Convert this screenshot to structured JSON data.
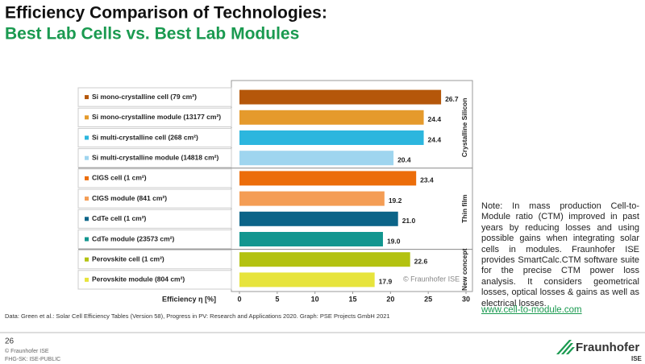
{
  "chart_data": {
    "type": "barh",
    "title": "Efficiency Comparison of Technologies:",
    "subtitle": "Best Lab Cells vs. Best Lab Modules",
    "categories": [
      "Si mono-crystalline cell (79 cm²)",
      "Si mono-crystalline module (13177 cm²)",
      "Si multi-crystalline cell (268 cm²)",
      "Si multi-crystalline module (14818 cm²)",
      "CIGS cell (1 cm²)",
      "CIGS module (841 cm²)",
      "CdTe cell (1 cm²)",
      "CdTe module (23573 cm²)",
      "Perovskite cell (1 cm²)",
      "Perovskite module (804 cm²)"
    ],
    "category_groups": [
      "Crystalline Silicon",
      "Crystalline Silicon",
      "Crystalline Silicon",
      "Crystalline Silicon",
      "Thin film",
      "Thin film",
      "Thin film",
      "Thin film",
      "New concept",
      "New concept"
    ],
    "values": [
      26.7,
      24.4,
      24.4,
      20.4,
      23.4,
      19.2,
      21.0,
      19.0,
      22.6,
      17.9
    ],
    "value_labels": [
      "26.7",
      "24.4",
      "24.4",
      "20.4",
      "23.4",
      "19.2",
      "21.0",
      "19.0",
      "22.6",
      "17.9"
    ],
    "colors": [
      "#b5570a",
      "#e59a2c",
      "#2cb6de",
      "#9fd5ef",
      "#ec6d0a",
      "#f49d55",
      "#0b6488",
      "#12968f",
      "#b3c210",
      "#e7e43c"
    ],
    "xlabel": "Efficiency η [%]",
    "xlim": [
      0,
      30
    ],
    "xticks": [
      0,
      5,
      10,
      15,
      20,
      25,
      30
    ],
    "watermark": "© Fraunhofer ISE",
    "source": "Data: Green et al.: Solar Cell Efficiency Tables (Version 58), Progress in PV: Research and Applications 2020. Graph: PSE Projects GmbH 2021"
  },
  "note": {
    "text": "Note: In mass production Cell-to-Module ratio (CTM) improved in past years by reducing losses and using possible gains when integrating solar cells in modules. Fraunhofer ISE provides SmartCalc.CTM software suite for the precise CTM power loss analysis. It considers geometrical losses, optical losses & gains as well as electrical losses.",
    "link": "www.cell-to-module.com"
  },
  "footer": {
    "page": "26",
    "copyright": "© Fraunhofer ISE",
    "classification": "FHG-SK: ISE-PUBLIC",
    "logo": "Fraunhofer",
    "logo_sub": "ISE"
  }
}
